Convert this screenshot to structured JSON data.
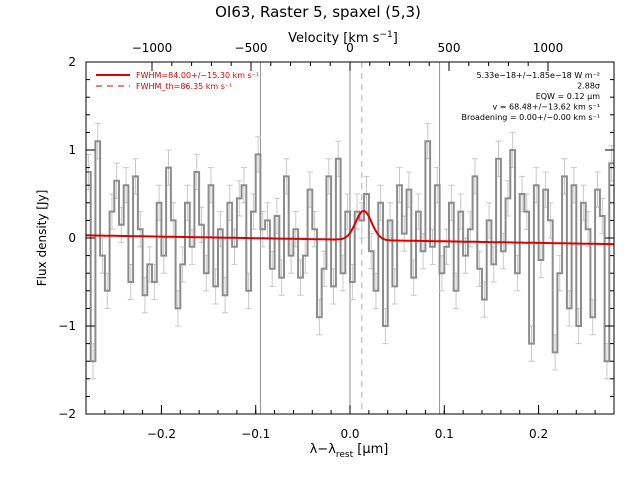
{
  "chart_data": {
    "type": "line",
    "title": "OI63, Raster 5, spaxel (5,3)",
    "xlabel": "λ−λ_rest [μm]",
    "x_label_prefix": "λ−λ",
    "x_label_sub": "rest",
    "x_label_suffix": " [μm]",
    "ylabel": "Flux density [Jy]",
    "top_axis_label": "Velocity [km s⁻¹]",
    "top_axis_label_main": "Velocity [km s",
    "top_axis_label_sup": "−1",
    "top_axis_label_end": "]",
    "xlim": [
      -0.28,
      0.28
    ],
    "ylim": [
      -2,
      2
    ],
    "x_ticks": [
      -0.2,
      -0.1,
      0.0,
      0.1,
      0.2
    ],
    "x_tick_labels": [
      "−0.2",
      "−0.1",
      "0.0",
      "0.1",
      "0.2"
    ],
    "y_ticks": [
      -2,
      -1,
      0,
      1,
      2
    ],
    "y_tick_labels": [
      "−2",
      "−1",
      "0",
      "1",
      "2"
    ],
    "top_ticks_kms": [
      -1000,
      -500,
      0,
      500,
      1000
    ],
    "top_tick_labels": [
      "−1000",
      "−500",
      "0",
      "500",
      "1000"
    ],
    "top_tick_positions_um": [
      -0.21,
      -0.105,
      0.0,
      0.105,
      0.21
    ],
    "vertical_lines_um": [
      -0.095,
      0.0,
      0.095
    ],
    "rest_line_um": 0.0125,
    "legend": {
      "position": "top-left",
      "fit_label": "FWHM=84.00+/−15.30 km s⁻¹",
      "th_label": "FWHM_th=86.35 km s⁻¹"
    },
    "annotations": [
      "5.33e−18+/−1.85e−18 W m⁻²",
      "2.88σ",
      "EQW = 0.12 μm",
      "v = 68.48+/−13.62 km s⁻¹",
      "Broadening = 0.00+/−0.00 km s⁻¹"
    ],
    "colors": {
      "data": "#8c8c8c",
      "error": "#c8c8c8",
      "fit": "#dd0000",
      "lines": "#909090"
    },
    "series": [
      {
        "style": "histogram",
        "x": [
          -0.2775,
          -0.2725,
          -0.2675,
          -0.2625,
          -0.2575,
          -0.2525,
          -0.2475,
          -0.2425,
          -0.2375,
          -0.2325,
          -0.2275,
          -0.2225,
          -0.2175,
          -0.2125,
          -0.2075,
          -0.2025,
          -0.1975,
          -0.1925,
          -0.1875,
          -0.1825,
          -0.1775,
          -0.1725,
          -0.1675,
          -0.1625,
          -0.1575,
          -0.1525,
          -0.1475,
          -0.1425,
          -0.1375,
          -0.1325,
          -0.1275,
          -0.1225,
          -0.1175,
          -0.1125,
          -0.1075,
          -0.1025,
          -0.0975,
          -0.0925,
          -0.0875,
          -0.0825,
          -0.0775,
          -0.0725,
          -0.0675,
          -0.0625,
          -0.0575,
          -0.0525,
          -0.0475,
          -0.0425,
          -0.0375,
          -0.0325,
          -0.0275,
          -0.0225,
          -0.0175,
          -0.0125,
          -0.0075,
          -0.0025,
          0.0025,
          0.0075,
          0.0125,
          0.0175,
          0.0225,
          0.0275,
          0.0325,
          0.0375,
          0.0425,
          0.0475,
          0.0525,
          0.0575,
          0.0625,
          0.0675,
          0.0725,
          0.0775,
          0.0825,
          0.0875,
          0.0925,
          0.0975,
          0.1025,
          0.1075,
          0.1125,
          0.1175,
          0.1225,
          0.1275,
          0.1325,
          0.1375,
          0.1425,
          0.1475,
          0.1525,
          0.1575,
          0.1625,
          0.1675,
          0.1725,
          0.1775,
          0.1825,
          0.1875,
          0.1925,
          0.1975,
          0.2025,
          0.2075,
          0.2125,
          0.2175,
          0.2225,
          0.2275,
          0.2325,
          0.2375,
          0.2425,
          0.2475,
          0.2525,
          0.2575,
          0.2625,
          0.2675,
          0.2725,
          0.2775
        ],
        "values": [
          0.75,
          -1.4,
          1.1,
          -0.2,
          -0.6,
          0.3,
          0.65,
          0.15,
          0.6,
          -0.5,
          0.7,
          0.1,
          -0.65,
          -0.3,
          -0.5,
          0.4,
          -0.2,
          0.8,
          0.2,
          -0.8,
          -0.3,
          0.4,
          -0.1,
          0.75,
          0.15,
          -0.4,
          0.6,
          -0.55,
          0.1,
          -0.65,
          0.4,
          -0.1,
          0.45,
          0.6,
          -0.6,
          0.3,
          0.95,
          0.1,
          0.2,
          -0.35,
          0.25,
          -0.45,
          0.7,
          -0.2,
          0.1,
          -0.45,
          -0.2,
          0.55,
          0.1,
          -0.9,
          -0.35,
          0.7,
          -0.55,
          0.9,
          -0.4,
          0.3,
          -0.5,
          0.3,
          0.2,
          0.5,
          -0.15,
          -0.6,
          0.4,
          -1.0,
          0.2,
          -0.55,
          0.6,
          0.05,
          0.55,
          -0.45,
          0.3,
          -0.15,
          1.1,
          -0.1,
          0.6,
          -0.4,
          -0.1,
          0.4,
          -0.6,
          0.3,
          -0.2,
          0.1,
          0.7,
          -0.35,
          -0.7,
          0.2,
          -0.3,
          0.9,
          -0.15,
          0.45,
          1.0,
          -0.4,
          0.5,
          0.3,
          -1.2,
          0.6,
          -0.25,
          0.55,
          0.2,
          -1.3,
          -0.4,
          0.7,
          -0.8,
          0.6,
          -1.0,
          0.4,
          0.1,
          -0.9,
          0.55,
          0.25,
          -1.4,
          0.85
        ],
        "errors": [
          0.2,
          0.2,
          0.2,
          0.2,
          0.2,
          0.2,
          0.2,
          0.2,
          0.2,
          0.2,
          0.2,
          0.2,
          0.2,
          0.2,
          0.2,
          0.2,
          0.2,
          0.2,
          0.2,
          0.2,
          0.2,
          0.2,
          0.2,
          0.2,
          0.2,
          0.2,
          0.2,
          0.2,
          0.2,
          0.2,
          0.2,
          0.2,
          0.2,
          0.2,
          0.2,
          0.2,
          0.2,
          0.2,
          0.2,
          0.2,
          0.2,
          0.2,
          0.2,
          0.2,
          0.2,
          0.2,
          0.2,
          0.2,
          0.2,
          0.2,
          0.2,
          0.2,
          0.2,
          0.2,
          0.2,
          0.2,
          0.2,
          0.2,
          0.2,
          0.2,
          0.2,
          0.2,
          0.2,
          0.2,
          0.2,
          0.2,
          0.2,
          0.2,
          0.2,
          0.2,
          0.2,
          0.2,
          0.2,
          0.2,
          0.2,
          0.2,
          0.2,
          0.2,
          0.2,
          0.2,
          0.2,
          0.2,
          0.2,
          0.2,
          0.2,
          0.2,
          0.2,
          0.2,
          0.2,
          0.2,
          0.2,
          0.2,
          0.2,
          0.2,
          0.2,
          0.2,
          0.2,
          0.2,
          0.2,
          0.2,
          0.2,
          0.2,
          0.2,
          0.2,
          0.2,
          0.2,
          0.2,
          0.2,
          0.2,
          0.2,
          0.2,
          0.2
        ]
      },
      {
        "style": "fit",
        "baseline_x": [
          -0.28,
          0.28
        ],
        "baseline_y": [
          0.03,
          -0.07
        ],
        "gaussian": {
          "center": 0.0145,
          "sigma": 0.0085,
          "amplitude": 0.33
        }
      }
    ]
  }
}
